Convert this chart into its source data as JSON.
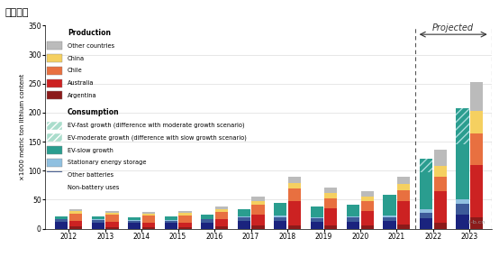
{
  "title": "短期趋势",
  "ylabel": "×1000 metric ton lithium content",
  "years": [
    2012,
    2013,
    2014,
    2015,
    2016,
    2017,
    2018,
    2019,
    2020,
    2021,
    2022,
    2023
  ],
  "prod_layers": [
    "Argentina",
    "Australia",
    "Chile",
    "China",
    "Other countries"
  ],
  "prod_vals": {
    "Argentina": [
      4,
      3,
      3,
      3,
      4,
      5,
      5,
      5,
      5,
      7,
      10,
      20
    ],
    "Australia": [
      9,
      9,
      8,
      8,
      12,
      20,
      42,
      30,
      25,
      40,
      55,
      90
    ],
    "Chile": [
      13,
      12,
      11,
      12,
      13,
      16,
      22,
      18,
      18,
      20,
      25,
      55
    ],
    "China": [
      4,
      4,
      4,
      4,
      5,
      7,
      10,
      8,
      8,
      10,
      18,
      38
    ],
    "Other countries": [
      3,
      3,
      3,
      3,
      4,
      7,
      10,
      10,
      9,
      13,
      28,
      50
    ]
  },
  "prod_colors": {
    "Argentina": "#8B1A1A",
    "Australia": "#CC2222",
    "Chile": "#E87040",
    "China": "#F5D060",
    "Other countries": "#BBBBBB"
  },
  "cons_layers": [
    "Non-battery uses",
    "Other batteries",
    "Stationary energy storage",
    "EV-slow growth",
    "EV-moderate extra",
    "EV-fast extra"
  ],
  "cons_vals": {
    "Non-battery uses": [
      12,
      11,
      10,
      10,
      11,
      13,
      13,
      12,
      12,
      13,
      18,
      25
    ],
    "Other batteries": [
      4,
      4,
      4,
      4,
      5,
      6,
      7,
      6,
      7,
      7,
      10,
      18
    ],
    "Stationary energy storage": [
      1,
      1,
      1,
      1,
      1,
      2,
      2,
      2,
      2,
      3,
      5,
      8
    ],
    "EV-slow growth": [
      4,
      5,
      5,
      6,
      8,
      13,
      22,
      18,
      20,
      35,
      65,
      95
    ],
    "EV-moderate extra": [
      0,
      0,
      0,
      0,
      0,
      0,
      0,
      0,
      0,
      0,
      15,
      22
    ],
    "EV-fast extra": [
      0,
      0,
      0,
      0,
      0,
      0,
      0,
      0,
      0,
      0,
      8,
      40
    ]
  },
  "cons_colors": {
    "Non-battery uses": "#1a237e",
    "Other batteries": "#3d5a99",
    "Stationary energy storage": "#90c0e0",
    "EV-slow growth": "#2a9d8f",
    "EV-moderate extra": "#2a9d8f",
    "EV-fast extra": "#2a9d8f"
  },
  "hatch_colors": {
    "EV-moderate extra": "#7ececa",
    "EV-fast extra": "#7ececa"
  },
  "ylim": [
    0,
    350
  ],
  "yticks": [
    0,
    50,
    100,
    150,
    200,
    250,
    300,
    350
  ],
  "proj_year_idx": 10,
  "background_color": "#ffffff",
  "watermark": "li-b.cn"
}
